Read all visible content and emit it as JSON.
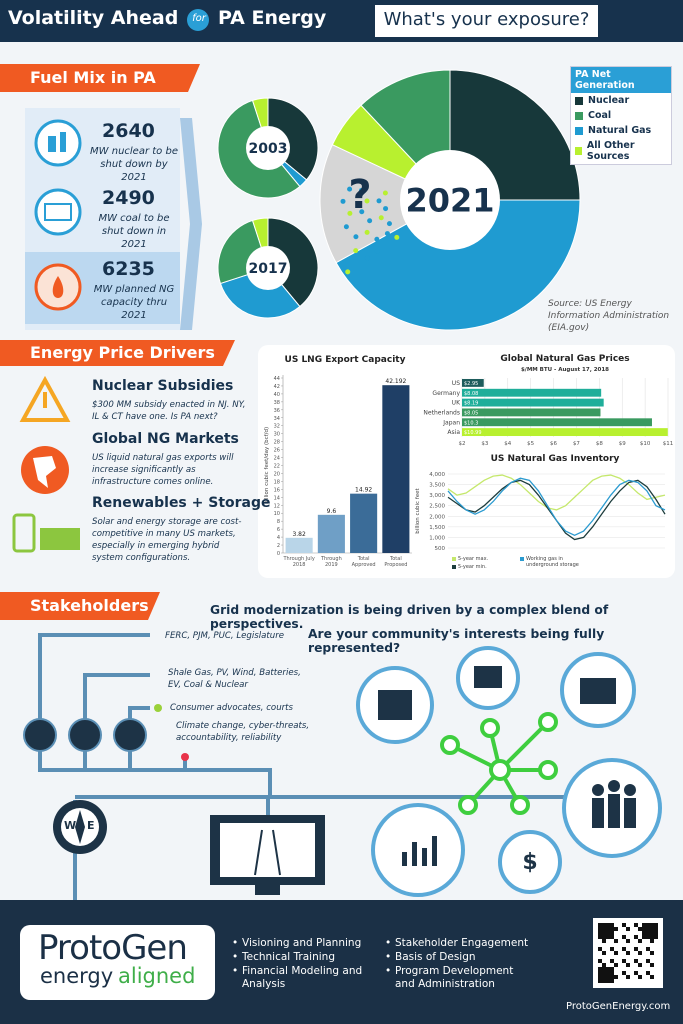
{
  "header": {
    "title_left": "Volatility Ahead",
    "connector": "for",
    "title_right": "PA Energy",
    "tagline": "What's your exposure?"
  },
  "fuel_mix": {
    "heading": "Fuel Mix in PA",
    "stats": [
      {
        "value": 2640,
        "text": "MW nuclear to be shut down by 2021"
      },
      {
        "value": 2490,
        "text": "MW coal to be shut down in 2021"
      },
      {
        "value": 6235,
        "text": "MW planned NG capacity thru 2021"
      }
    ],
    "source": "Source: US Energy Information Administration (EIA.gov)"
  },
  "legend": {
    "title": "PA Net Generation",
    "entries": [
      {
        "name": "Nuclear",
        "color": "#17383a"
      },
      {
        "name": "Coal",
        "color": "#3a9a60"
      },
      {
        "name": "Natural Gas",
        "color": "#1f9bd1"
      },
      {
        "name": "All Other Sources",
        "color": "#b8f02f"
      }
    ]
  },
  "price_drivers": {
    "heading": "Energy Price Drivers",
    "items": [
      {
        "title": "Nuclear Subsidies",
        "text": "$300 MM subsidy enacted in NJ. NY, IL & CT have one. Is PA next?"
      },
      {
        "title": "Global NG Markets",
        "text": "US liquid natural gas exports will increase significantly as infrastructure comes online."
      },
      {
        "title": "Renewables + Storage",
        "text": "Solar and energy storage are cost-competitive in many US markets, especially in emerging hybrid system configurations."
      }
    ]
  },
  "stakeholders": {
    "heading": "Stakeholders",
    "line_1": "Grid modernization is being driven by a complex blend of perspectives.",
    "line_2": "Are your community's interests being fully represented?",
    "labels": [
      "FERC, PJM, PUC, Legislature",
      "Shale Gas, PV, Wind, Batteries, EV, Coal & Nuclear",
      "Consumer advocates, courts",
      "Climate change, cyber-threats, accountability, reliability"
    ],
    "compass": {
      "west": "W",
      "east": "E"
    }
  },
  "footer": {
    "logo": {
      "name": "ProtoGen",
      "word_1": "energy",
      "word_2": "aligned"
    },
    "services_left": [
      "Visioning and Planning",
      "Technical Training",
      "Financial Modeling and Analysis"
    ],
    "services_right": [
      "Stakeholder Engagement",
      "Basis of Design",
      "Program Development and Administration"
    ],
    "url": "ProtoGenEnergy.com"
  },
  "chart_data": [
    {
      "type": "pie",
      "title": "2003",
      "values": [
        36,
        3,
        56,
        5
      ],
      "colors": [
        "#17383a",
        "#1f9bd1",
        "#3a9a60",
        "#b8f02f"
      ]
    },
    {
      "type": "pie",
      "title": "2017",
      "values": [
        39,
        31,
        25,
        5
      ],
      "colors": [
        "#17383a",
        "#1f9bd1",
        "#3a9a60",
        "#b8f02f"
      ]
    },
    {
      "type": "pie",
      "title": "2021",
      "annotation": "?",
      "values": [
        25,
        42,
        15,
        6,
        12
      ],
      "colors": [
        "#17383a",
        "#1f9bd1",
        "#d6d6d6",
        "#b8f02f",
        "#3a9a60"
      ]
    },
    {
      "type": "bar",
      "title": "US LNG Export Capacity",
      "y_label": "billion cubic feet/day (bcf/d)",
      "categories": [
        "Through July 2018",
        "Through 2019",
        "Total Approved",
        "Total Proposed"
      ],
      "values": [
        3.82,
        9.6,
        14.92,
        42.192
      ],
      "colors": [
        "#b9d5e8",
        "#6f9fc6",
        "#3b6c98",
        "#1f3f66"
      ],
      "ylim": [
        0,
        44
      ],
      "yticks": [
        0,
        2,
        4,
        6,
        8,
        10,
        12,
        14,
        16,
        18,
        20,
        22,
        24,
        26,
        28,
        30,
        32,
        34,
        36,
        38,
        40,
        42,
        44
      ]
    },
    {
      "type": "hbar",
      "title": "Global Natural Gas Prices",
      "subtitle": "$/MM BTU - August 17, 2018",
      "categories": [
        "US",
        "Germany",
        "UK",
        "Netherlands",
        "Japan",
        "Asia"
      ],
      "values": [
        2.95,
        8.08,
        8.19,
        8.05,
        10.3,
        10.99
      ],
      "value_labels": [
        "$2.95",
        "$8.08",
        "$8.19",
        "$8.05",
        "$10.3",
        "$10.99"
      ],
      "colors": [
        "#1d5c5c",
        "#1fae9a",
        "#1fae9a",
        "#3a9a60",
        "#3a9a60",
        "#b8f02f"
      ],
      "xlim": [
        2,
        11
      ],
      "xticks": [
        {
          "value": 2,
          "label": "$2"
        },
        {
          "value": 3,
          "label": "$3"
        },
        {
          "value": 4,
          "label": "$4"
        },
        {
          "value": 5,
          "label": "$5"
        },
        {
          "value": 6,
          "label": "$6"
        },
        {
          "value": 7,
          "label": "$7"
        },
        {
          "value": 8,
          "label": "$8"
        },
        {
          "value": 9,
          "label": "$9"
        },
        {
          "value": 10,
          "label": "$10"
        },
        {
          "value": 11,
          "label": "$11"
        }
      ],
      "grid": true
    },
    {
      "type": "line",
      "title": "US Natural Gas Inventory",
      "y_label": "billion cubic feet",
      "categories": [
        null,
        null,
        null,
        null,
        null,
        null,
        null,
        null,
        null,
        null,
        null,
        null,
        null,
        null,
        null,
        null,
        null,
        null,
        null,
        null,
        null,
        null,
        null,
        null,
        null
      ],
      "series": [
        {
          "name": "5-year max.",
          "color": "#c5e86c",
          "values": [
            3300,
            3000,
            3100,
            3400,
            3700,
            3900,
            3950,
            3800,
            3500,
            3100,
            2700,
            2400,
            2300,
            2500,
            2900,
            3300,
            3700,
            3900,
            3950,
            3800,
            3500,
            3100,
            2800,
            2900,
            3000
          ]
        },
        {
          "name": "5-year min.",
          "color": "#1d3d3d",
          "values": [
            2900,
            2600,
            2300,
            2200,
            2500,
            2900,
            3300,
            3600,
            3700,
            3500,
            3000,
            2400,
            1800,
            1200,
            900,
            1000,
            1500,
            2100,
            2700,
            3200,
            3600,
            3700,
            3400,
            2800,
            2100
          ]
        },
        {
          "name": "Working gas in underground storage",
          "color": "#2b9bd0",
          "values": [
            3200,
            2700,
            2300,
            2100,
            2300,
            2700,
            3200,
            3600,
            3800,
            3700,
            3200,
            2500,
            1800,
            1300,
            1100,
            1300,
            1800,
            2400,
            3000,
            3500,
            3700,
            3600,
            3200,
            2500,
            2300
          ]
        }
      ],
      "ylim": [
        500,
        4000
      ],
      "yticks": [
        500,
        {
          "value": 1000,
          "label": "1,000"
        },
        {
          "value": 1500,
          "label": "1,500"
        },
        {
          "value": 2000,
          "label": "2,000"
        },
        {
          "value": 2500,
          "label": "2,500"
        },
        {
          "value": 3000,
          "label": "3,000"
        },
        {
          "value": 3500,
          "label": "3,500"
        },
        {
          "value": 4000,
          "label": "4,000"
        }
      ],
      "grid": true
    }
  ]
}
